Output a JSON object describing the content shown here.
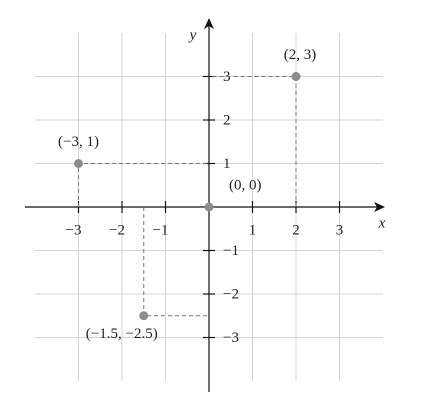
{
  "chart_data": {
    "type": "scatter",
    "x_label": "x",
    "y_label": "y",
    "xlim": [
      -4,
      4
    ],
    "ylim": [
      -4,
      4
    ],
    "xticks": [
      {
        "value": -3,
        "label": "−3"
      },
      {
        "value": -2,
        "label": "−2"
      },
      {
        "value": -1,
        "label": "−1"
      },
      1,
      2,
      3
    ],
    "yticks": [
      {
        "value": -3,
        "label": "−3"
      },
      {
        "value": -2,
        "label": "−2"
      },
      {
        "value": -1,
        "label": "−1"
      },
      1,
      2,
      3
    ],
    "grid": true,
    "series": [
      {
        "color": "#8c8c8c",
        "x": [
          2,
          -3,
          0,
          -1.5
        ],
        "values": [
          3,
          1,
          0,
          -2.5
        ],
        "value_labels": [
          "(2, 3)",
          "(−3, 1)",
          "(0, 0)",
          "(−1.5, −2.5)"
        ]
      }
    ]
  }
}
